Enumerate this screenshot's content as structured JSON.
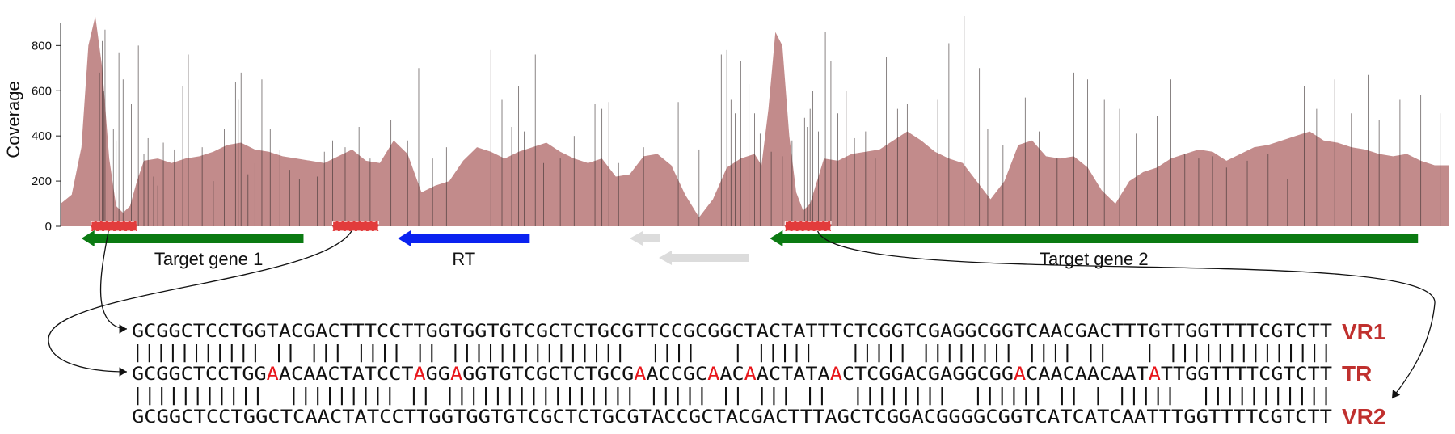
{
  "chart_data": {
    "type": "area",
    "ylabel": "Coverage",
    "ylim": [
      0,
      930
    ],
    "yticks": [
      0,
      200,
      400,
      600,
      800
    ],
    "xlim": [
      0,
      1000
    ],
    "x": [
      0,
      8,
      15,
      20,
      25,
      30,
      35,
      40,
      45,
      50,
      55,
      60,
      70,
      80,
      90,
      100,
      110,
      120,
      130,
      140,
      150,
      160,
      170,
      180,
      190,
      200,
      210,
      220,
      230,
      240,
      250,
      260,
      270,
      280,
      290,
      300,
      310,
      320,
      330,
      340,
      350,
      360,
      370,
      380,
      390,
      400,
      410,
      420,
      430,
      440,
      450,
      460,
      470,
      480,
      490,
      500,
      505,
      510,
      515,
      520,
      525,
      530,
      535,
      540,
      550,
      560,
      570,
      580,
      590,
      600,
      610,
      620,
      630,
      640,
      650,
      660,
      670,
      680,
      690,
      700,
      710,
      720,
      730,
      740,
      750,
      760,
      770,
      780,
      790,
      800,
      810,
      820,
      830,
      840,
      850,
      860,
      870,
      880,
      890,
      900,
      910,
      920,
      930,
      940,
      950,
      960,
      970,
      980,
      990,
      1000
    ],
    "y": [
      100,
      140,
      350,
      800,
      930,
      700,
      300,
      90,
      60,
      90,
      200,
      290,
      300,
      280,
      300,
      310,
      330,
      360,
      370,
      340,
      330,
      310,
      300,
      290,
      280,
      310,
      340,
      290,
      280,
      380,
      320,
      150,
      180,
      200,
      290,
      350,
      330,
      300,
      330,
      350,
      370,
      330,
      300,
      280,
      300,
      220,
      230,
      310,
      320,
      270,
      140,
      40,
      120,
      260,
      300,
      320,
      270,
      520,
      860,
      800,
      400,
      150,
      70,
      100,
      300,
      290,
      320,
      330,
      340,
      380,
      420,
      380,
      330,
      300,
      280,
      200,
      120,
      200,
      360,
      380,
      310,
      300,
      310,
      260,
      160,
      100,
      200,
      240,
      260,
      300,
      320,
      340,
      330,
      290,
      320,
      350,
      360,
      380,
      400,
      420,
      380,
      370,
      350,
      340,
      320,
      310,
      320,
      290,
      270,
      270
    ],
    "spikes": [
      [
        28,
        680
      ],
      [
        30,
        820
      ],
      [
        31,
        600
      ],
      [
        32,
        870
      ],
      [
        34,
        300
      ],
      [
        37,
        330
      ],
      [
        38,
        430
      ],
      [
        40,
        380
      ],
      [
        42,
        770
      ],
      [
        45,
        650
      ],
      [
        51,
        540
      ],
      [
        56,
        800
      ],
      [
        60,
        320
      ],
      [
        63,
        390
      ],
      [
        67,
        220
      ],
      [
        70,
        180
      ],
      [
        74,
        370
      ],
      [
        82,
        340
      ],
      [
        88,
        620
      ],
      [
        92,
        760
      ],
      [
        102,
        350
      ],
      [
        110,
        200
      ],
      [
        118,
        430
      ],
      [
        126,
        640
      ],
      [
        128,
        560
      ],
      [
        130,
        680
      ],
      [
        135,
        230
      ],
      [
        140,
        280
      ],
      [
        145,
        650
      ],
      [
        151,
        430
      ],
      [
        158,
        340
      ],
      [
        165,
        250
      ],
      [
        172,
        210
      ],
      [
        185,
        220
      ],
      [
        190,
        330
      ],
      [
        196,
        380
      ],
      [
        205,
        350
      ],
      [
        215,
        440
      ],
      [
        223,
        300
      ],
      [
        238,
        470
      ],
      [
        250,
        380
      ],
      [
        258,
        700
      ],
      [
        268,
        300
      ],
      [
        278,
        350
      ],
      [
        295,
        360
      ],
      [
        310,
        780
      ],
      [
        318,
        560
      ],
      [
        325,
        440
      ],
      [
        330,
        620
      ],
      [
        334,
        420
      ],
      [
        342,
        760
      ],
      [
        348,
        280
      ],
      [
        360,
        300
      ],
      [
        370,
        400
      ],
      [
        385,
        540
      ],
      [
        390,
        520
      ],
      [
        395,
        550
      ],
      [
        402,
        280
      ],
      [
        420,
        350
      ],
      [
        445,
        550
      ],
      [
        460,
        340
      ],
      [
        476,
        760
      ],
      [
        480,
        780
      ],
      [
        483,
        560
      ],
      [
        486,
        500
      ],
      [
        490,
        730
      ],
      [
        496,
        630
      ],
      [
        500,
        500
      ],
      [
        504,
        410
      ],
      [
        512,
        330
      ],
      [
        520,
        310
      ],
      [
        527,
        380
      ],
      [
        532,
        270
      ],
      [
        536,
        480
      ],
      [
        538,
        440
      ],
      [
        540,
        520
      ],
      [
        542,
        600
      ],
      [
        546,
        420
      ],
      [
        551,
        860
      ],
      [
        555,
        730
      ],
      [
        560,
        500
      ],
      [
        566,
        600
      ],
      [
        572,
        390
      ],
      [
        580,
        420
      ],
      [
        587,
        300
      ],
      [
        595,
        750
      ],
      [
        603,
        520
      ],
      [
        610,
        540
      ],
      [
        620,
        440
      ],
      [
        632,
        560
      ],
      [
        640,
        810
      ],
      [
        651,
        940
      ],
      [
        662,
        700
      ],
      [
        668,
        430
      ],
      [
        679,
        360
      ],
      [
        695,
        570
      ],
      [
        705,
        420
      ],
      [
        718,
        300
      ],
      [
        730,
        680
      ],
      [
        740,
        650
      ],
      [
        752,
        560
      ],
      [
        763,
        520
      ],
      [
        775,
        410
      ],
      [
        790,
        490
      ],
      [
        800,
        650
      ],
      [
        810,
        320
      ],
      [
        820,
        300
      ],
      [
        830,
        310
      ],
      [
        840,
        260
      ],
      [
        855,
        290
      ],
      [
        870,
        320
      ],
      [
        884,
        210
      ],
      [
        896,
        620
      ],
      [
        905,
        520
      ],
      [
        918,
        650
      ],
      [
        930,
        500
      ],
      [
        942,
        670
      ],
      [
        950,
        470
      ],
      [
        965,
        560
      ],
      [
        980,
        580
      ],
      [
        994,
        500
      ]
    ],
    "coverage_color": "#c28b8b",
    "spike_color": "#3a3030"
  },
  "genes": [
    {
      "label": "Target gene 1",
      "color": "#0b7a12",
      "direction": "left",
      "start": 15,
      "end": 175
    },
    {
      "label": "RT",
      "color": "#0a22f0",
      "direction": "left",
      "start": 243,
      "end": 338
    },
    {
      "label": "",
      "color": "#dcdcdc",
      "direction": "left",
      "start": 410,
      "end": 432
    },
    {
      "label": "",
      "color": "#dcdcdc",
      "direction": "left",
      "start": 431,
      "end": 496
    },
    {
      "label": "Target gene 2",
      "color": "#0b7a12",
      "direction": "left",
      "start": 511,
      "end": 978
    }
  ],
  "repeats": [
    {
      "name": "VR1",
      "start": 22,
      "end": 55,
      "color": "#e23c3c"
    },
    {
      "name": "TR",
      "start": 196,
      "end": 229,
      "color": "#e23c3c"
    },
    {
      "name": "VR2",
      "start": 522,
      "end": 555,
      "color": "#e23c3c"
    }
  ],
  "alignment": {
    "rows": [
      {
        "label": "VR1",
        "seq": "GCGGCTCCTGGTACGACTTTCCTTGGTGGTGTCGCTCTGCGTTCCGCGGCTACTATTTCTCGGTCGAGGCGGTCAACGACTTTGTTGGTTTTCGTCTT"
      },
      {
        "label": "TR",
        "seq": "GCGGCTCCTGGAACAACTATCCTAGGAGGTGTCGCTCTGCGAACCGCAACAACTATAACTCGGACGAGGCGGACAACAACAATATTGGTTTTCGTCTT"
      },
      {
        "label": "VR2",
        "seq": "GCGGCTCCTGGCTCAACTATCCTTGGTGGTGTCGCTCTGCGTACCGCTACGACTTTAGCTCGGACGGGGCGGTCATCATCAATTTGGTTTTCGTCTT"
      }
    ],
    "match_lines": [
      "||||||||||| || ||| |||| || |||||||||||||||  ||||   | |||||   ||||| |||||||| |||| ||   | ||||||||||||||",
      "|||||||||||  ||||||||| || |||||||||||||||| ||||| || ||| ||  ||||||||  |||||| || | |||||  |||||||||||"
    ],
    "mismatch_color": "#e8161b",
    "label_color": "#c0302e"
  }
}
